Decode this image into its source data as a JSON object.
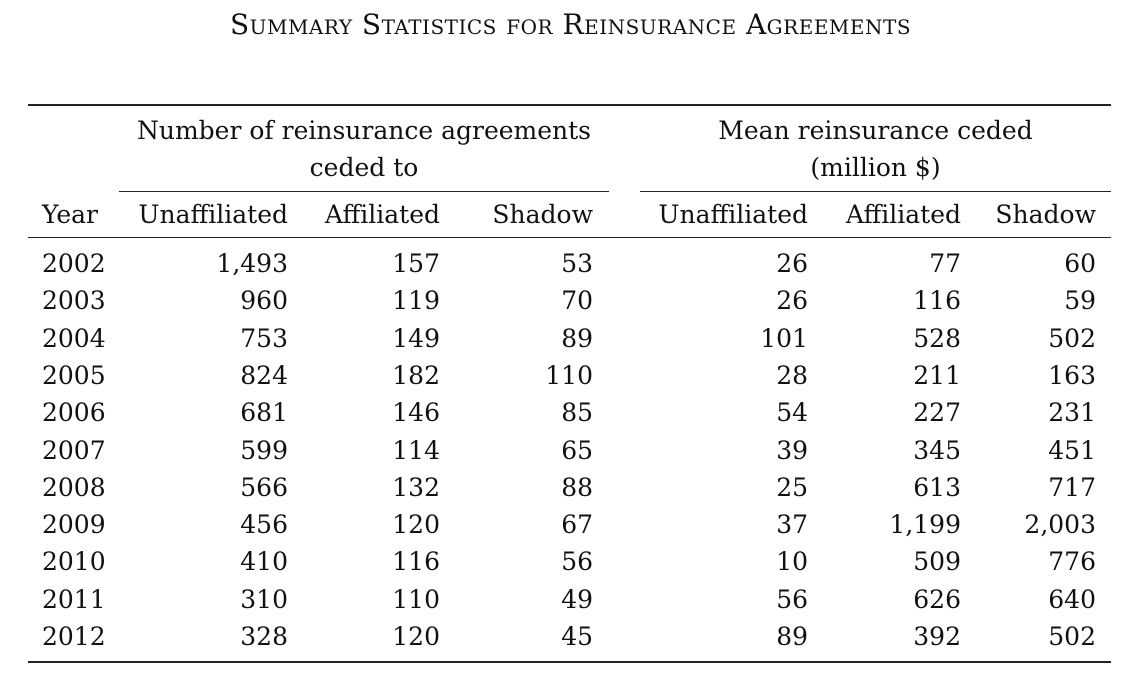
{
  "title": "Summary Statistics for Reinsurance Agreements",
  "group_headers": {
    "left_line1": "Number of reinsurance agreements",
    "left_line2": "ceded to",
    "right_line1": "Mean reinsurance ceded",
    "right_line2": "(million $)"
  },
  "columns": [
    "Year",
    "Unaffiliated",
    "Affiliated",
    "Shadow",
    "Unaffiliated",
    "Affiliated",
    "Shadow"
  ],
  "rows": [
    [
      "2002",
      "1,493",
      "157",
      "53",
      "26",
      "77",
      "60"
    ],
    [
      "2003",
      "960",
      "119",
      "70",
      "26",
      "116",
      "59"
    ],
    [
      "2004",
      "753",
      "149",
      "89",
      "101",
      "528",
      "502"
    ],
    [
      "2005",
      "824",
      "182",
      "110",
      "28",
      "211",
      "163"
    ],
    [
      "2006",
      "681",
      "146",
      "85",
      "54",
      "227",
      "231"
    ],
    [
      "2007",
      "599",
      "114",
      "65",
      "39",
      "345",
      "451"
    ],
    [
      "2008",
      "566",
      "132",
      "88",
      "25",
      "613",
      "717"
    ],
    [
      "2009",
      "456",
      "120",
      "67",
      "37",
      "1,199",
      "2,003"
    ],
    [
      "2010",
      "410",
      "116",
      "56",
      "10",
      "509",
      "776"
    ],
    [
      "2011",
      "310",
      "110",
      "49",
      "56",
      "626",
      "640"
    ],
    [
      "2012",
      "328",
      "120",
      "45",
      "89",
      "392",
      "502"
    ]
  ]
}
